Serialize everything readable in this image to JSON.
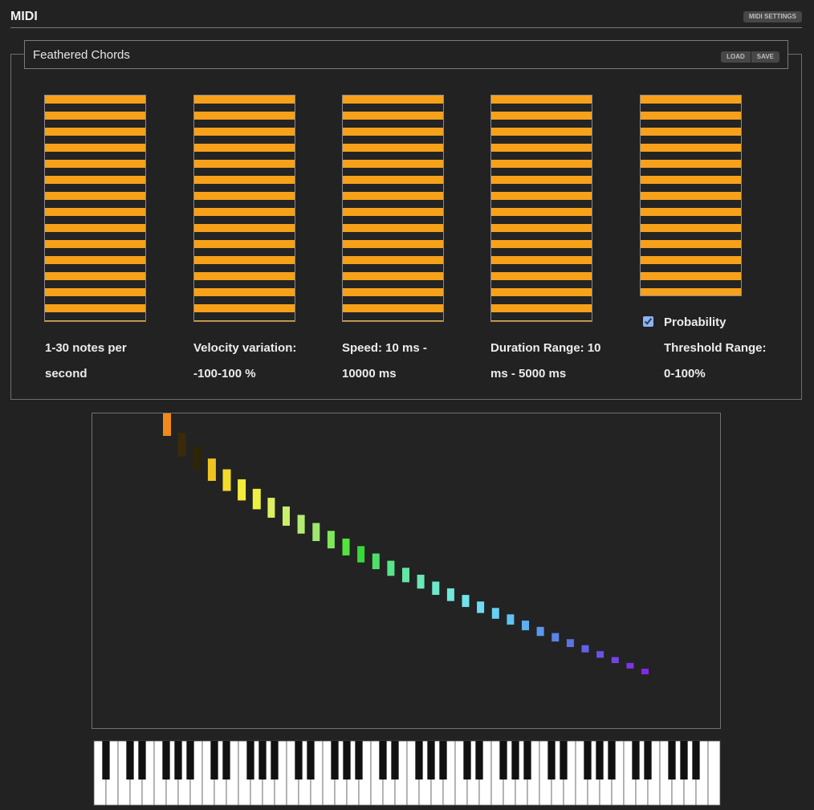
{
  "app": {
    "title": "MIDI",
    "settings_label": "MIDI SETTINGS"
  },
  "preset": {
    "name": "Feathered Chords",
    "load_label": "LOAD",
    "save_label": "SAVE"
  },
  "controls": [
    {
      "label": "1-30 notes per second"
    },
    {
      "label": "Velocity variation: -100-100 %"
    },
    {
      "label": "Speed: 10 ms - 10000 ms"
    },
    {
      "label": "Duration Range: 10 ms - 5000 ms"
    },
    {
      "label": "Probability Threshold Range: 0-100%",
      "checked": true
    }
  ],
  "colors": {
    "slider": "#f7a11a",
    "background": "#222222"
  },
  "keyboard": {
    "white_keys": 52
  },
  "notes": [
    {
      "t": 0,
      "p": 0,
      "color": "#f08a18"
    },
    {
      "t": 1,
      "p": 1,
      "color": "#3a2a0a"
    },
    {
      "t": 2,
      "p": 2,
      "color": "#2e2406"
    },
    {
      "t": 3,
      "p": 3,
      "color": "#f0c420"
    },
    {
      "t": 4,
      "p": 4,
      "color": "#f4dc2a"
    },
    {
      "t": 5,
      "p": 5,
      "color": "#f4ec3a"
    },
    {
      "t": 6,
      "p": 6,
      "color": "#ecf040"
    },
    {
      "t": 7,
      "p": 7,
      "color": "#dcf060"
    },
    {
      "t": 8,
      "p": 8,
      "color": "#c8f06a"
    },
    {
      "t": 9,
      "p": 9,
      "color": "#b4ec72"
    },
    {
      "t": 10,
      "p": 10,
      "color": "#9ee870"
    },
    {
      "t": 11,
      "p": 11,
      "color": "#7ee85a"
    },
    {
      "t": 12,
      "p": 12,
      "color": "#52e43c"
    },
    {
      "t": 13,
      "p": 13,
      "color": "#38d838"
    },
    {
      "t": 14,
      "p": 14,
      "color": "#4ce06a"
    },
    {
      "t": 15,
      "p": 15,
      "color": "#58e48a"
    },
    {
      "t": 16,
      "p": 16,
      "color": "#62e6a2"
    },
    {
      "t": 17,
      "p": 17,
      "color": "#6ae8b8"
    },
    {
      "t": 18,
      "p": 18,
      "color": "#6ee8cc"
    },
    {
      "t": 19,
      "p": 19,
      "color": "#70e8dc"
    },
    {
      "t": 20,
      "p": 20,
      "color": "#70e4ec"
    },
    {
      "t": 21,
      "p": 21,
      "color": "#6edcf4"
    },
    {
      "t": 22,
      "p": 22,
      "color": "#68d0f4"
    },
    {
      "t": 23,
      "p": 23,
      "color": "#62c2f2"
    },
    {
      "t": 24,
      "p": 24,
      "color": "#5eaef0"
    },
    {
      "t": 25,
      "p": 25,
      "color": "#5a98ee"
    },
    {
      "t": 26,
      "p": 26,
      "color": "#5a84ea"
    },
    {
      "t": 27,
      "p": 27,
      "color": "#5c72e6"
    },
    {
      "t": 28,
      "p": 28,
      "color": "#6262e4"
    },
    {
      "t": 29,
      "p": 29,
      "color": "#6a52e2"
    },
    {
      "t": 30,
      "p": 30,
      "color": "#7444e2"
    },
    {
      "t": 31,
      "p": 31,
      "color": "#7c34e4"
    },
    {
      "t": 32,
      "p": 32,
      "color": "#8428e8"
    }
  ]
}
